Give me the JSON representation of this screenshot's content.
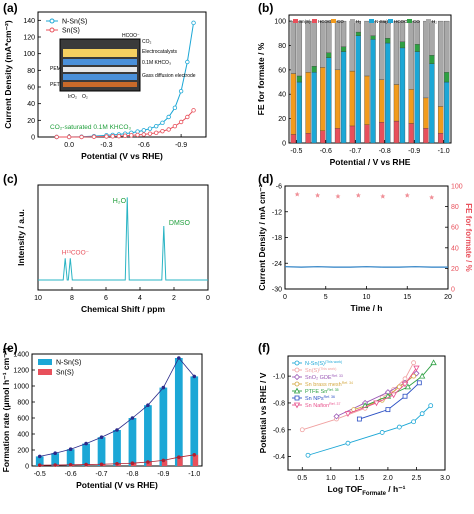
{
  "chart_data": [
    {
      "id": "a",
      "panel_label": "(a)",
      "type": "line",
      "xlabel": "Potential (V vs RHE)",
      "ylabel": "Current Density (mA*cm⁻²)",
      "xlim": [
        0.25,
        -1.1
      ],
      "ylim": [
        0,
        150
      ],
      "x_ticks": [
        "0.0",
        "-0.3",
        "-0.6",
        "-0.9"
      ],
      "y_ticks": [
        "0",
        "20",
        "40",
        "60",
        "80",
        "100",
        "120",
        "140"
      ],
      "series": [
        {
          "name": "N-Sn(S)",
          "color": "#1ca7d6",
          "x": [
            0.1,
            0.0,
            -0.1,
            -0.2,
            -0.3,
            -0.35,
            -0.4,
            -0.45,
            -0.5,
            -0.55,
            -0.6,
            -0.65,
            -0.7,
            -0.75,
            -0.8,
            -0.85,
            -0.9,
            -0.95,
            -1.0
          ],
          "y": [
            0,
            0,
            0.3,
            1,
            2,
            2.5,
            3,
            4,
            5,
            6.5,
            8,
            10,
            13,
            17,
            24,
            35,
            55,
            90,
            137
          ]
        },
        {
          "name": "Sn(S)",
          "color": "#e8505b",
          "x": [
            0.1,
            0.0,
            -0.1,
            -0.2,
            -0.3,
            -0.35,
            -0.4,
            -0.45,
            -0.5,
            -0.55,
            -0.6,
            -0.65,
            -0.7,
            -0.75,
            -0.8,
            -0.85,
            -0.9,
            -0.95,
            -1.0
          ],
          "y": [
            0,
            0,
            0,
            0.3,
            0.6,
            0.8,
            1,
            1.5,
            2,
            2.5,
            3,
            4,
            5,
            7,
            9,
            13,
            18,
            24,
            32
          ]
        }
      ],
      "inset": {
        "labels": [
          "CO₂",
          "Electrocatalysts",
          "0.1M KHCO₃",
          "PEM",
          "PET",
          "IrO₂",
          "O₂",
          "Gass diffusion electrode",
          "HCOO⁻"
        ],
        "note": "CO₂-saturated 0.1M KHCO₃"
      }
    },
    {
      "id": "b",
      "panel_label": "(b)",
      "type": "bar",
      "xlabel": "Potential / V vs RHE",
      "ylabel": "FE for formate / %",
      "ylim": [
        0,
        105
      ],
      "x_ticks": [
        "-0.5",
        "-0.6",
        "-0.7",
        "-0.8",
        "-0.9",
        "-1.0"
      ],
      "y_ticks": [
        "0",
        "20",
        "40",
        "60",
        "80",
        "100"
      ],
      "categories": [
        "-0.50",
        "-0.55",
        "-0.60",
        "-0.65",
        "-0.70",
        "-0.75",
        "-0.80",
        "-0.85",
        "-0.90",
        "-0.95",
        "-1.00"
      ],
      "legend": [
        {
          "name": "Sn(S)",
          "color": "#e8505b"
        },
        {
          "name": "HCOOH",
          "color": "#e8505b"
        },
        {
          "name": "CO",
          "color": "#f29b1d"
        },
        {
          "name": "H₂",
          "color": "#a8a8a8"
        },
        {
          "name": "N-Sn(S)",
          "color": "#1ca7d6"
        },
        {
          "name": "HCOOH",
          "color": "#1ca7d6"
        },
        {
          "name": "CO",
          "color": "#2ea043"
        },
        {
          "name": "H₂",
          "color": "#a8a8a8"
        }
      ],
      "series": [
        {
          "name": "Sn(S) HCOOH",
          "values": [
            7,
            8,
            10,
            12,
            14,
            15,
            17,
            18,
            16,
            12,
            8
          ]
        },
        {
          "name": "Sn(S) CO",
          "values": [
            50,
            50,
            52,
            48,
            45,
            40,
            35,
            30,
            28,
            25,
            22
          ]
        },
        {
          "name": "Sn(S) H₂",
          "values": [
            43,
            42,
            38,
            40,
            41,
            45,
            48,
            52,
            56,
            63,
            70
          ]
        },
        {
          "name": "N-Sn(S) HCOOH",
          "values": [
            50,
            58,
            70,
            75,
            88,
            85,
            82,
            78,
            75,
            65,
            50
          ]
        },
        {
          "name": "N-Sn(S) CO",
          "values": [
            5,
            5,
            4,
            4,
            3,
            3,
            4,
            5,
            6,
            7,
            8
          ]
        },
        {
          "name": "N-Sn(S) H₂",
          "values": [
            45,
            37,
            26,
            21,
            9,
            12,
            14,
            17,
            19,
            28,
            42
          ]
        }
      ]
    },
    {
      "id": "c",
      "panel_label": "(c)",
      "type": "line",
      "xlabel": "Chemical Shift / ppm",
      "ylabel": "Intensity / a.u.",
      "xlim": [
        10,
        0
      ],
      "x_ticks": [
        "10",
        "8",
        "6",
        "4",
        "2",
        "0"
      ],
      "annotations": [
        "H¹³COO⁻",
        "H₂O",
        "DMSO"
      ],
      "peaks": [
        {
          "ppm": 8.4,
          "height": 0.25
        },
        {
          "ppm": 8.1,
          "height": 0.25
        },
        {
          "ppm": 4.75,
          "height": 0.95
        },
        {
          "ppm": 2.6,
          "height": 0.62
        }
      ],
      "series": [
        {
          "color": "#2ab4c4"
        }
      ]
    },
    {
      "id": "d",
      "panel_label": "(d)",
      "type": "scatter",
      "xlabel": "Time / h",
      "ylabel": "Current Density / mA cm⁻²",
      "y2label": "FE for formate / %",
      "xlim": [
        0,
        20
      ],
      "ylim": [
        -30,
        -6
      ],
      "y2lim": [
        0,
        100
      ],
      "x_ticks": [
        "0",
        "5",
        "10",
        "15",
        "20"
      ],
      "y_ticks": [
        "-6",
        "-12",
        "-18",
        "-24",
        "-30"
      ],
      "y2_ticks": [
        "0",
        "20",
        "40",
        "60",
        "80",
        "100"
      ],
      "current_trace": {
        "color": "#2a7fc4",
        "x": [
          0,
          2,
          4,
          6,
          8,
          10,
          12,
          14,
          16,
          18,
          20
        ],
        "y": [
          -24.8,
          -24.9,
          -24.8,
          -24.9,
          -24.9,
          -24.8,
          -24.9,
          -24.9,
          -24.8,
          -24.9,
          -24.9
        ]
      },
      "fe_points": {
        "color": "#f09098",
        "x": [
          1.5,
          4,
          6.5,
          9,
          12,
          15,
          18
        ],
        "y": [
          92,
          91,
          90,
          91,
          90,
          91,
          89
        ]
      }
    },
    {
      "id": "e",
      "panel_label": "(e)",
      "type": "bar",
      "xlabel": "Potential (V vs RHE)",
      "ylabel": "Formation rate (μmol h⁻¹ cm⁻²)",
      "ylim": [
        0,
        1400
      ],
      "x_ticks": [
        "-0.5",
        "-0.6",
        "-0.7",
        "-0.8",
        "-0.9",
        "-1.0"
      ],
      "y_ticks": [
        "0",
        "200",
        "400",
        "600",
        "800",
        "1000",
        "1200",
        "1400"
      ],
      "categories": [
        "-0.50",
        "-0.55",
        "-0.60",
        "-0.65",
        "-0.70",
        "-0.75",
        "-0.80",
        "-0.85",
        "-0.90",
        "-0.95",
        "-1.00"
      ],
      "series": [
        {
          "name": "N-Sn(S)",
          "color": "#1ca7d6",
          "values": [
            120,
            160,
            210,
            280,
            360,
            450,
            600,
            760,
            980,
            1350,
            1120
          ]
        },
        {
          "name": "Sn(S)",
          "color": "#e8505b",
          "values": [
            10,
            12,
            15,
            18,
            22,
            28,
            35,
            50,
            70,
            110,
            140
          ]
        }
      ]
    },
    {
      "id": "f",
      "panel_label": "(f)",
      "type": "line",
      "xlabel": "Log TOFₒₒₒₒₒₒₒ / h⁻¹",
      "xlabel_main": "Log TOF",
      "xlabel_sub": "Formate",
      "xlabel_tail": " / h⁻¹",
      "ylabel": "Potential vs RHE / V",
      "xlim": [
        0.25,
        3.0
      ],
      "ylim": [
        -0.3,
        -1.15
      ],
      "x_ticks": [
        "0.5",
        "1.0",
        "1.5",
        "2.0",
        "2.5",
        "3.0"
      ],
      "y_ticks": [
        "-0.4",
        "-0.6",
        "-0.8",
        "-1.0"
      ],
      "series": [
        {
          "name": "N-Sn(S)",
          "ref": "(This work)",
          "color": "#1ca7d6",
          "marker": "circle",
          "x": [
            0.6,
            1.3,
            1.9,
            2.2,
            2.45,
            2.6,
            2.75
          ],
          "y": [
            -0.41,
            -0.5,
            -0.58,
            -0.62,
            -0.66,
            -0.72,
            -0.78
          ]
        },
        {
          "name": "Sn(S)",
          "ref": "(This work)",
          "color": "#f0a0a0",
          "marker": "circle",
          "x": [
            0.5,
            1.1,
            1.6,
            1.9,
            2.1,
            2.3,
            2.45
          ],
          "y": [
            -0.6,
            -0.68,
            -0.76,
            -0.84,
            -0.9,
            -0.98,
            -1.1
          ]
        },
        {
          "name": "SnO₂ GDE",
          "ref": "Ref. 33",
          "color": "#9b59b6",
          "marker": "diamond",
          "x": [
            1.1,
            1.6,
            2.0,
            2.3,
            2.5
          ],
          "y": [
            -0.7,
            -0.8,
            -0.88,
            -0.95,
            -1.02
          ]
        },
        {
          "name": "Sn brass mesh",
          "ref": "Ref. 34",
          "color": "#d4a840",
          "marker": "circle",
          "x": [
            1.4,
            1.9,
            2.2,
            2.45
          ],
          "y": [
            -0.75,
            -0.82,
            -0.92,
            -1.0
          ]
        },
        {
          "name": "PTFE Sn",
          "ref": "Ref. 35",
          "color": "#2ea043",
          "marker": "triangle",
          "x": [
            1.6,
            2.0,
            2.35,
            2.6,
            2.8
          ],
          "y": [
            -0.78,
            -0.85,
            -0.92,
            -1.0,
            -1.1
          ]
        },
        {
          "name": "Sn NPs",
          "ref": "Ref. 36",
          "color": "#2a4fc4",
          "marker": "square",
          "x": [
            1.5,
            2.0,
            2.3,
            2.55
          ],
          "y": [
            -0.68,
            -0.75,
            -0.85,
            -0.95
          ]
        },
        {
          "name": "Sn Nafion",
          "ref": "Ref. 37",
          "color": "#e8508c",
          "marker": "triangle-down",
          "x": [
            1.3,
            1.8,
            2.1,
            2.3,
            2.5
          ],
          "y": [
            -0.72,
            -0.8,
            -0.86,
            -0.94,
            -1.06
          ]
        }
      ]
    }
  ]
}
